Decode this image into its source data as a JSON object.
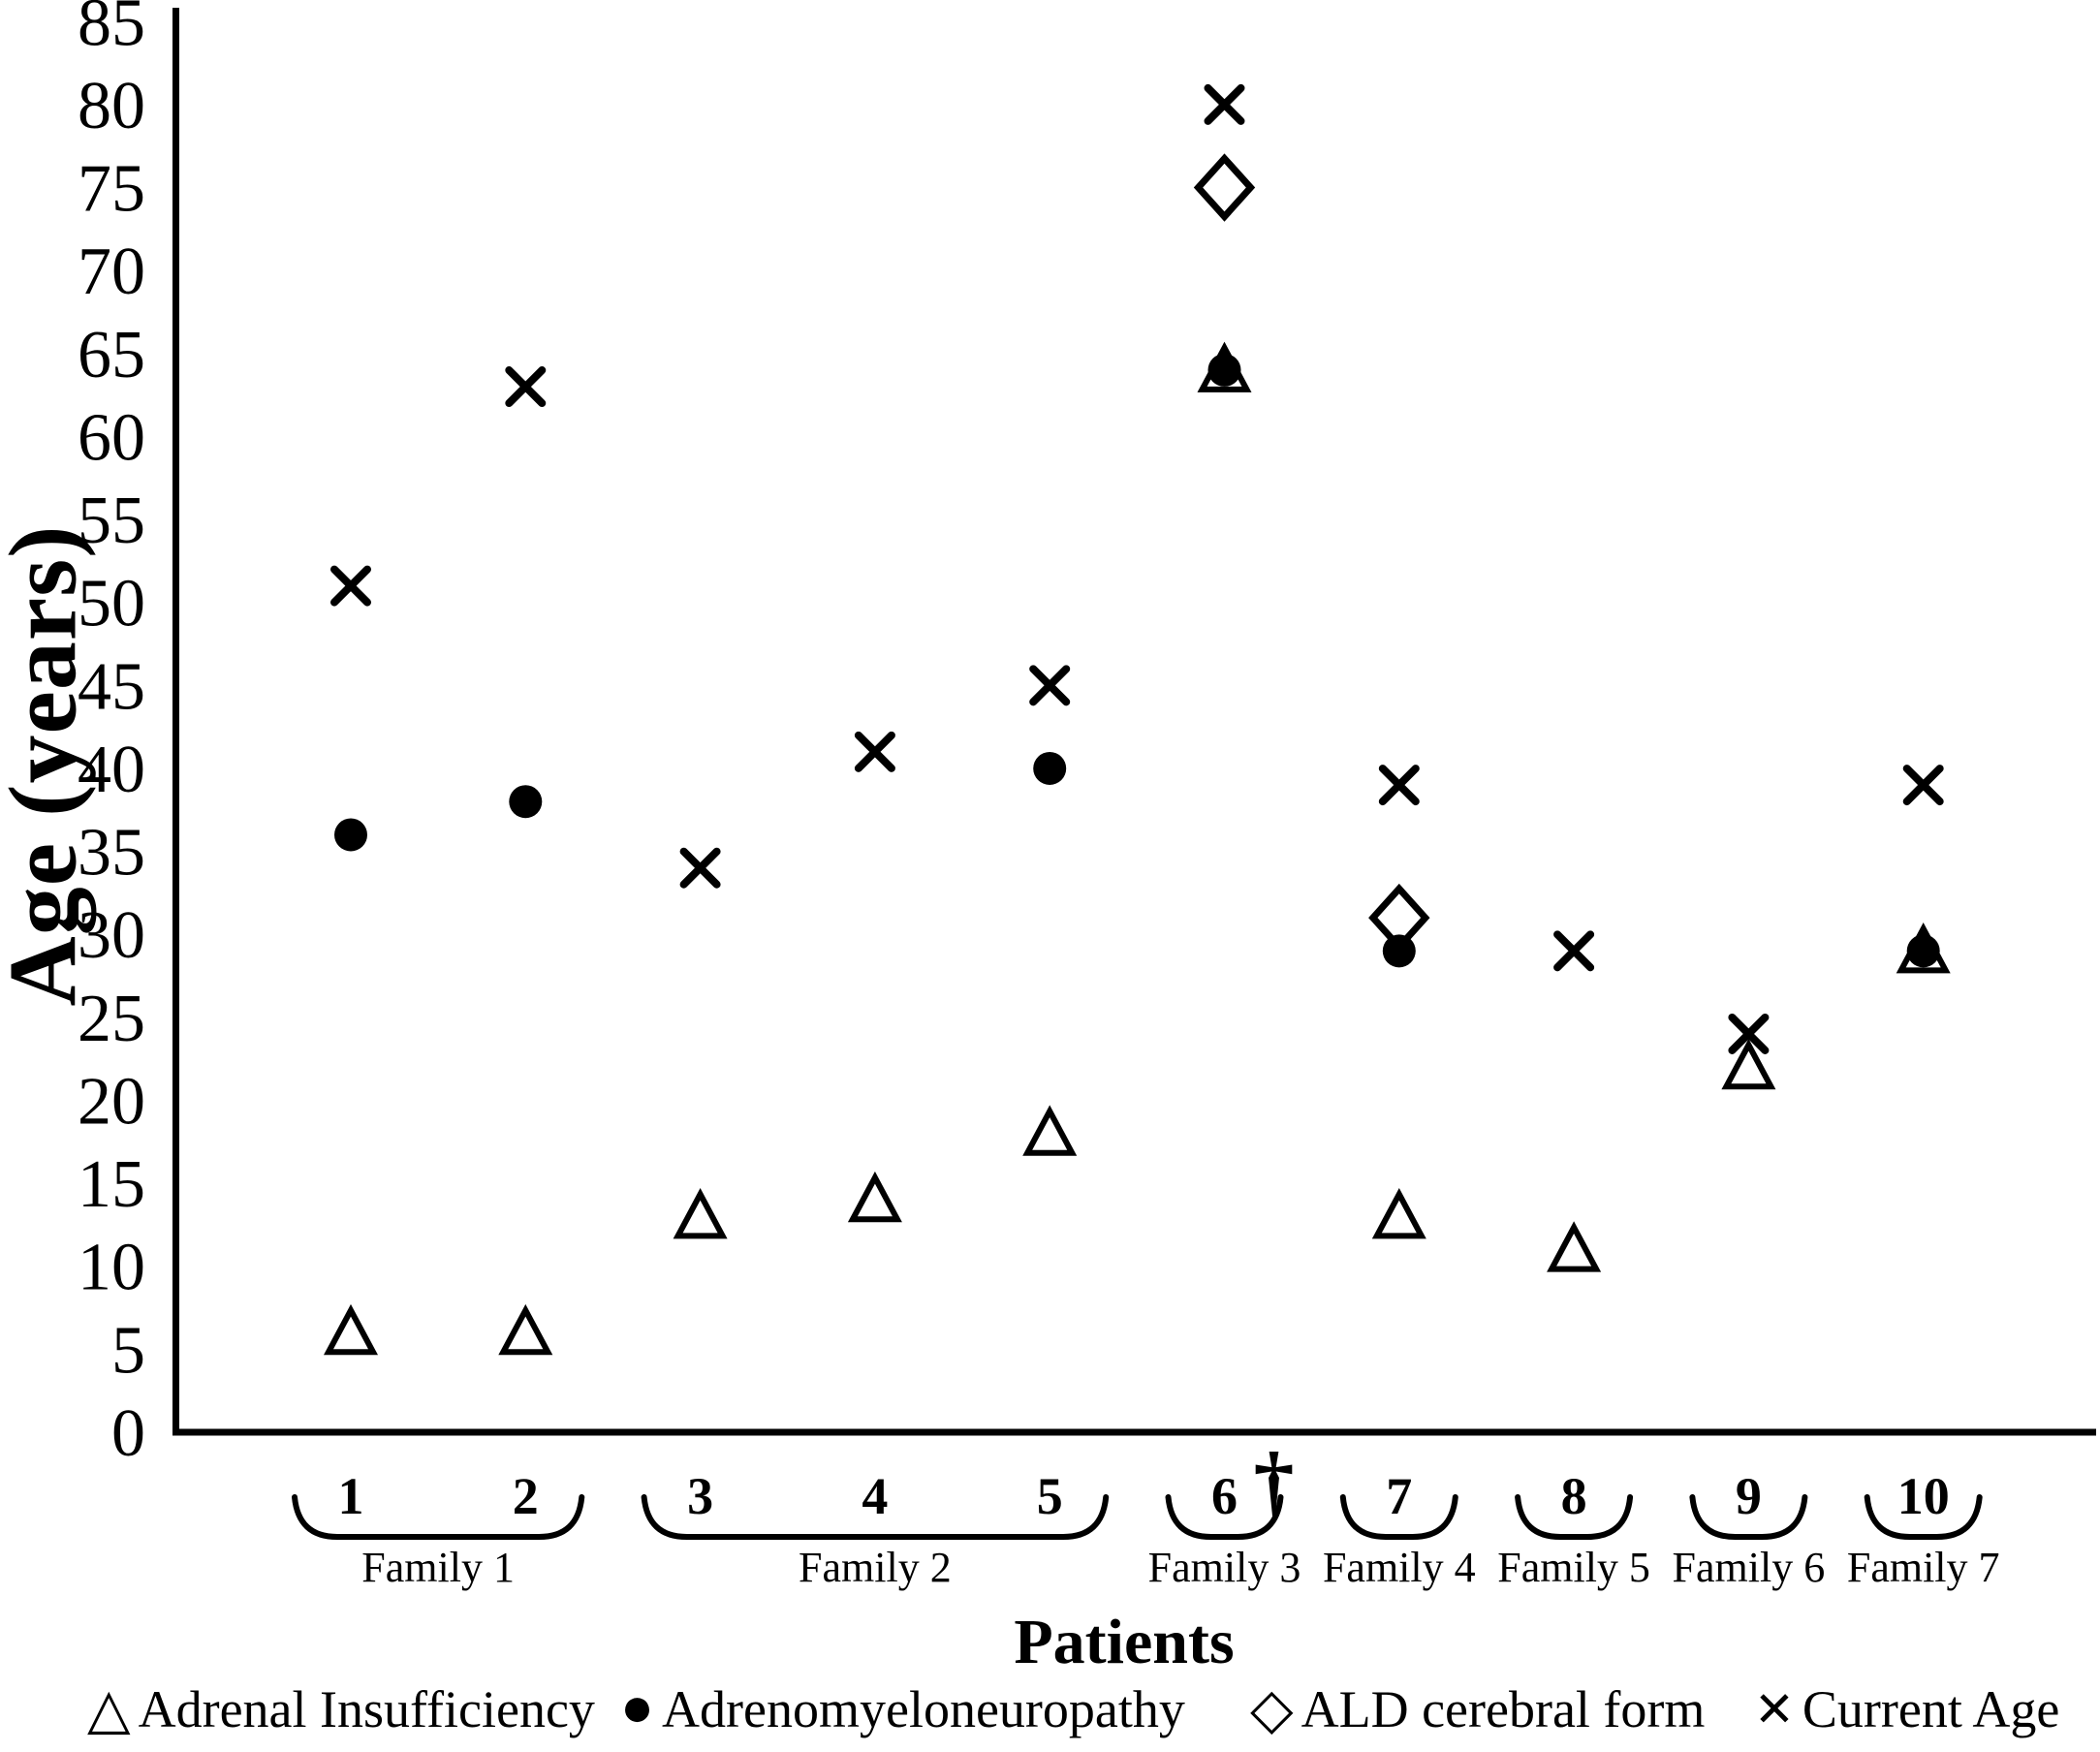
{
  "figure": {
    "background": "#ffffff",
    "foreground": "#000000"
  },
  "axes": {
    "y_title": "Age (years)",
    "x_title": "Patients"
  },
  "legend": {
    "position": "bottom",
    "items": [
      {
        "symbol": "△",
        "label": "Adrenal Insufficiency"
      },
      {
        "symbol": "●",
        "label": "Adrenomyeloneuropathy"
      },
      {
        "symbol": "◇",
        "label": "ALD cerebral form"
      },
      {
        "symbol": "✕",
        "label": "Current Age"
      }
    ]
  },
  "chart_data": {
    "type": "scatter",
    "title": "",
    "xlabel": "Patients",
    "ylabel": "Age (years)",
    "ylim": [
      0,
      85
    ],
    "y_ticks": [
      0,
      5,
      10,
      15,
      20,
      25,
      30,
      35,
      40,
      45,
      50,
      55,
      60,
      65,
      70,
      75,
      80,
      85
    ],
    "grid": false,
    "legend_position": "bottom",
    "categories": [
      "1",
      "2",
      "3",
      "4",
      "5",
      "6",
      "7",
      "8",
      "9",
      "10"
    ],
    "deceased_marker": {
      "patient": "6",
      "symbol": "†"
    },
    "families": [
      {
        "name": "Family 1",
        "patients": [
          "1",
          "2"
        ]
      },
      {
        "name": "Family 2",
        "patients": [
          "3",
          "4",
          "5"
        ]
      },
      {
        "name": "Family 3",
        "patients": [
          "6"
        ]
      },
      {
        "name": "Family 4",
        "patients": [
          "7"
        ]
      },
      {
        "name": "Family 5",
        "patients": [
          "8"
        ]
      },
      {
        "name": "Family 6",
        "patients": [
          "9"
        ]
      },
      {
        "name": "Family 7",
        "patients": [
          "10"
        ]
      }
    ],
    "series": [
      {
        "name": "Adrenal Insufficiency",
        "marker": "triangle-open",
        "values": [
          6,
          6,
          13,
          14,
          18,
          64,
          13,
          11,
          22,
          29
        ]
      },
      {
        "name": "Adrenomyeloneuropathy",
        "marker": "circle-filled",
        "values": [
          36,
          38,
          null,
          null,
          40,
          64,
          29,
          null,
          null,
          29
        ]
      },
      {
        "name": "ALD cerebral form",
        "marker": "diamond-open",
        "values": [
          null,
          null,
          null,
          null,
          null,
          75,
          31,
          null,
          null,
          null
        ]
      },
      {
        "name": "Current Age",
        "marker": "x",
        "values": [
          51,
          63,
          34,
          41,
          45,
          80,
          39,
          29,
          24,
          39
        ]
      }
    ]
  }
}
